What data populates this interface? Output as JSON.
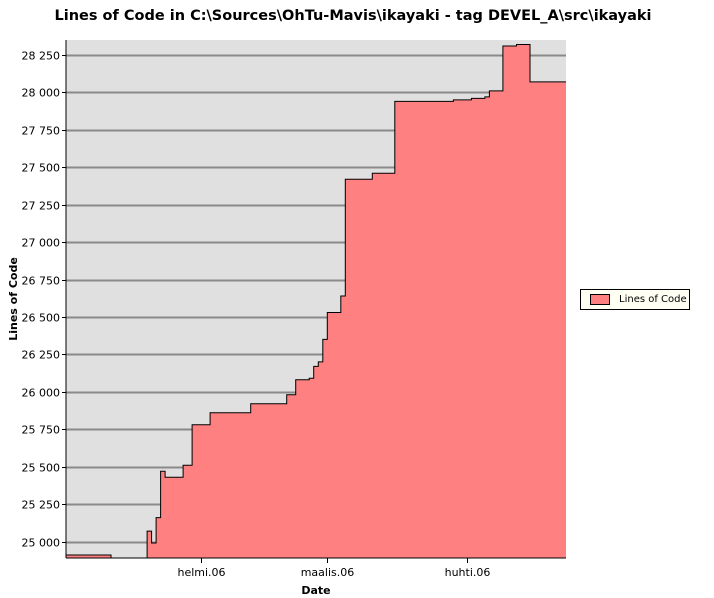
{
  "chart_data": {
    "type": "area",
    "title": "Lines of Code in C:\\Sources\\OhTu-Mavis\\ikayaki - tag DEVEL_A\\src\\ikayaki",
    "xlabel": "Date",
    "ylabel": "Lines of Code",
    "x_tick_labels": [
      {
        "date": "2006-02-01",
        "label": "helmi.06"
      },
      {
        "date": "2006-03-01",
        "label": "maalis.06"
      },
      {
        "date": "2006-04-01",
        "label": "huhti.06"
      }
    ],
    "xlim": [
      "2006-01-02",
      "2006-04-23"
    ],
    "ylim": [
      24890,
      28350
    ],
    "y_ticks": [
      {
        "value": 25000,
        "label": "25 000"
      },
      {
        "value": 25250,
        "label": "25 250"
      },
      {
        "value": 25500,
        "label": "25 500"
      },
      {
        "value": 25750,
        "label": "25 750"
      },
      {
        "value": 26000,
        "label": "26 000"
      },
      {
        "value": 26250,
        "label": "26 250"
      },
      {
        "value": 26500,
        "label": "26 500"
      },
      {
        "value": 26750,
        "label": "26 750"
      },
      {
        "value": 27000,
        "label": "27 000"
      },
      {
        "value": 27250,
        "label": "27 250"
      },
      {
        "value": 27500,
        "label": "27 500"
      },
      {
        "value": 27750,
        "label": "27 750"
      },
      {
        "value": 28000,
        "label": "28 000"
      },
      {
        "value": 28250,
        "label": "28 250"
      }
    ],
    "grid": true,
    "legend_position": "right",
    "series": [
      {
        "name": "Lines of Code",
        "color": "#ff8080",
        "step": true,
        "points": [
          {
            "x": "2006-01-02",
            "y": 24890
          },
          {
            "x": "2006-01-02",
            "y": 24910
          },
          {
            "x": "2006-01-12",
            "y": 24910
          },
          {
            "x": "2006-01-12",
            "y": 24890
          },
          {
            "x": "2006-01-20",
            "y": 24890
          },
          {
            "x": "2006-01-20",
            "y": 25070
          },
          {
            "x": "2006-01-21",
            "y": 24990
          },
          {
            "x": "2006-01-22",
            "y": 25160
          },
          {
            "x": "2006-01-23",
            "y": 25470
          },
          {
            "x": "2006-01-24",
            "y": 25430
          },
          {
            "x": "2006-01-28",
            "y": 25510
          },
          {
            "x": "2006-01-30",
            "y": 25780
          },
          {
            "x": "2006-02-03",
            "y": 25860
          },
          {
            "x": "2006-02-12",
            "y": 25920
          },
          {
            "x": "2006-02-20",
            "y": 25980
          },
          {
            "x": "2006-02-22",
            "y": 26080
          },
          {
            "x": "2006-02-25",
            "y": 26090
          },
          {
            "x": "2006-02-26",
            "y": 26170
          },
          {
            "x": "2006-02-27",
            "y": 26200
          },
          {
            "x": "2006-02-28",
            "y": 26350
          },
          {
            "x": "2006-03-01",
            "y": 26530
          },
          {
            "x": "2006-03-04",
            "y": 26640
          },
          {
            "x": "2006-03-05",
            "y": 27420
          },
          {
            "x": "2006-03-11",
            "y": 27460
          },
          {
            "x": "2006-03-16",
            "y": 27940
          },
          {
            "x": "2006-03-29",
            "y": 27950
          },
          {
            "x": "2006-04-02",
            "y": 27960
          },
          {
            "x": "2006-04-05",
            "y": 27970
          },
          {
            "x": "2006-04-06",
            "y": 28010
          },
          {
            "x": "2006-04-09",
            "y": 28310
          },
          {
            "x": "2006-04-12",
            "y": 28320
          },
          {
            "x": "2006-04-15",
            "y": 28070
          },
          {
            "x": "2006-04-23",
            "y": 28070
          }
        ]
      }
    ]
  }
}
